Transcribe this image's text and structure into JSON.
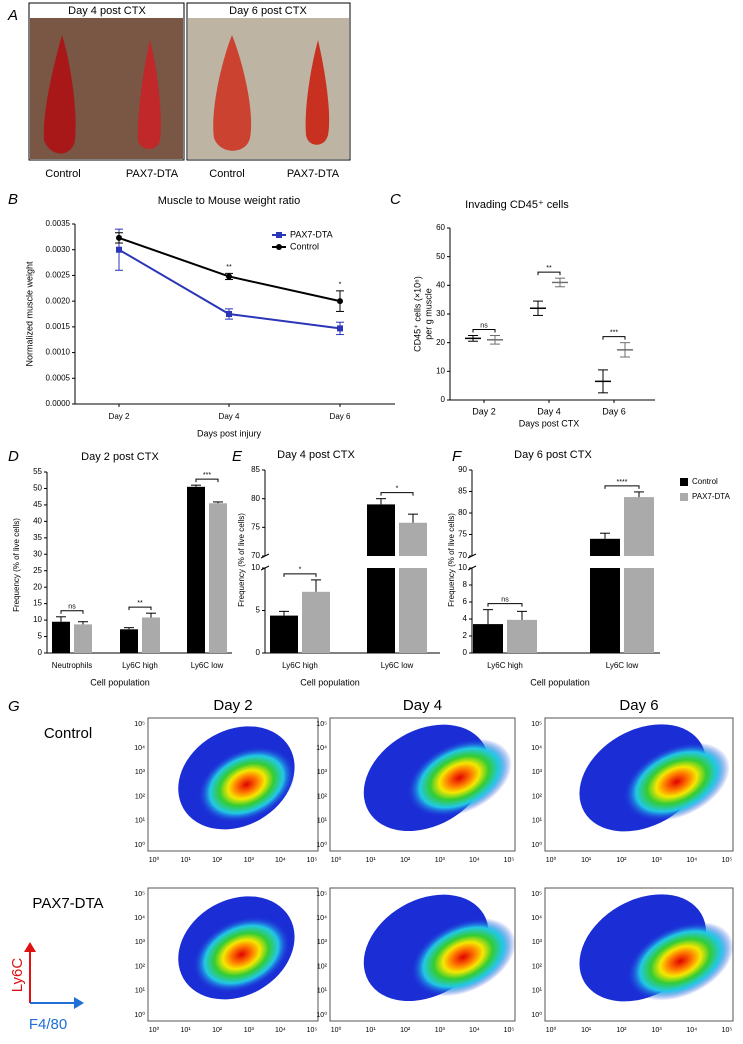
{
  "photo_panel": {
    "panel": "A",
    "headers": [
      "Day 4 post CTX",
      "Day 6 post CTX"
    ],
    "labels": [
      "Control",
      "PAX7-DTA",
      "Control",
      "PAX7-DTA"
    ]
  },
  "chart_data": [
    {
      "panel": "B",
      "type": "line",
      "title": "Muscle to Mouse weight ratio",
      "y_label": "Normalized muscle weight",
      "x_label": "Days post injury",
      "categories": [
        "Day 2",
        "Day 4",
        "Day 6"
      ],
      "series": [
        {
          "name": "PAX7-DTA",
          "color": "#2a35b8",
          "marker": "square",
          "values": [
            0.003,
            0.00175,
            0.00147
          ],
          "errors": [
            0.0004,
            0.0001,
            0.00012
          ]
        },
        {
          "name": "Control",
          "color": "#000000",
          "marker": "circle",
          "values": [
            0.00323,
            0.00248,
            0.002
          ],
          "errors": [
            0.0001,
            6e-05,
            0.0002
          ]
        }
      ],
      "annotations": [
        null,
        "**",
        "*"
      ],
      "ylim": [
        0,
        0.0035
      ],
      "yticks": [
        {
          "value": 0,
          "label": "0.0000"
        },
        {
          "value": 0.0005,
          "label": "0.0005"
        },
        {
          "value": 0.001,
          "label": "0.0010"
        },
        {
          "value": 0.0015,
          "label": "0.0015"
        },
        {
          "value": 0.002,
          "label": "0.0020"
        },
        {
          "value": 0.0025,
          "label": "0.0025"
        },
        {
          "value": 0.003,
          "label": "0.0030"
        },
        {
          "value": 0.0035,
          "label": "0.0035"
        }
      ],
      "legend": "upper right"
    },
    {
      "panel": "C",
      "type": "errorbar",
      "title": "Invading CD45⁺ cells",
      "y_label": [
        "CD45⁺ cells (×10⁶)",
        "per g muscle"
      ],
      "x_label": "Days post CTX",
      "categories": [
        "Day 2",
        "Day 4",
        "Day 6"
      ],
      "series": [
        {
          "name": "Control",
          "color": "#000000",
          "values": [
            21.5,
            32,
            6.5
          ],
          "errors": [
            1,
            2.5,
            4
          ]
        },
        {
          "name": "PAX7-DTA",
          "color": "#6e6e6e",
          "values": [
            21,
            41,
            17.5
          ],
          "errors": [
            1.5,
            1.5,
            2.5
          ]
        }
      ],
      "annotations": [
        "ns",
        "**",
        "***"
      ],
      "ylim": [
        0,
        60
      ],
      "yticks": [
        0,
        10,
        20,
        30,
        40,
        50,
        60
      ],
      "legend": "right"
    },
    {
      "panel": "D",
      "type": "bar",
      "title": "Day 2 post CTX",
      "y_label": "Frequency (% of live cells)",
      "x_label": "Cell population",
      "categories": [
        "Neutrophils",
        "Ly6C high",
        "Ly6C low"
      ],
      "series": [
        {
          "name": "Control",
          "color": "#000000",
          "values": [
            9.5,
            7.2,
            50.5
          ],
          "errors": [
            1.5,
            0.5,
            0.5
          ]
        },
        {
          "name": "PAX7-DTA",
          "color": "#aaaaaa",
          "values": [
            8.7,
            10.8,
            45.5
          ],
          "errors": [
            0.8,
            1.3,
            0.4
          ]
        }
      ],
      "annotations": [
        "ns",
        "**",
        "***"
      ],
      "ylim": [
        0,
        55
      ],
      "yticks": [
        0,
        5,
        10,
        15,
        20,
        25,
        30,
        35,
        40,
        45,
        50,
        55
      ]
    },
    {
      "panel": "E",
      "type": "bar",
      "title": "Day 4 post CTX",
      "y_label": "Frequency (% of live cells)",
      "x_label": "Cell population",
      "categories": [
        "Ly6C high",
        "Ly6C low"
      ],
      "series": [
        {
          "name": "Control",
          "color": "#000000",
          "values": [
            4.4,
            79
          ],
          "errors": [
            0.5,
            1
          ]
        },
        {
          "name": "PAX7-DTA",
          "color": "#aaaaaa",
          "values": [
            7.2,
            75.8
          ],
          "errors": [
            1.4,
            1.5
          ]
        }
      ],
      "annotations": [
        "*",
        "*"
      ],
      "y_segments": [
        {
          "ylim": [
            0,
            10
          ],
          "yticks": [
            0,
            5,
            10
          ]
        },
        {
          "ylim": [
            70,
            85
          ],
          "yticks": [
            70,
            75,
            80,
            85
          ]
        }
      ]
    },
    {
      "panel": "F",
      "type": "bar",
      "title": "Day 6 post CTX",
      "y_label": "Frequency (% of live cells)",
      "x_label": "Cell population",
      "categories": [
        "Ly6C high",
        "Ly6C low"
      ],
      "series": [
        {
          "name": "Control",
          "color": "#000000",
          "values": [
            3.4,
            74
          ],
          "errors": [
            1.7,
            1.3
          ]
        },
        {
          "name": "PAX7-DTA",
          "color": "#aaaaaa",
          "values": [
            3.9,
            83.7
          ],
          "errors": [
            1.0,
            1.2
          ]
        }
      ],
      "annotations": [
        "ns",
        "****"
      ],
      "y_segments": [
        {
          "ylim": [
            0,
            10
          ],
          "yticks": [
            0,
            2,
            4,
            6,
            8,
            10
          ]
        },
        {
          "ylim": [
            70,
            90
          ],
          "yticks": [
            70,
            75,
            80,
            85,
            90
          ]
        }
      ],
      "legend": "upper right"
    }
  ],
  "flow_panel": {
    "panel": "G",
    "columns": [
      "Day 2",
      "Day 4",
      "Day 6"
    ],
    "rows": [
      "Control",
      "PAX7-DTA"
    ],
    "y_axis_label": "Ly6C",
    "x_axis_label": "F4/80",
    "tick_labels": [
      "10⁰",
      "10¹",
      "10²",
      "10³",
      "10⁴",
      "10⁵"
    ]
  }
}
